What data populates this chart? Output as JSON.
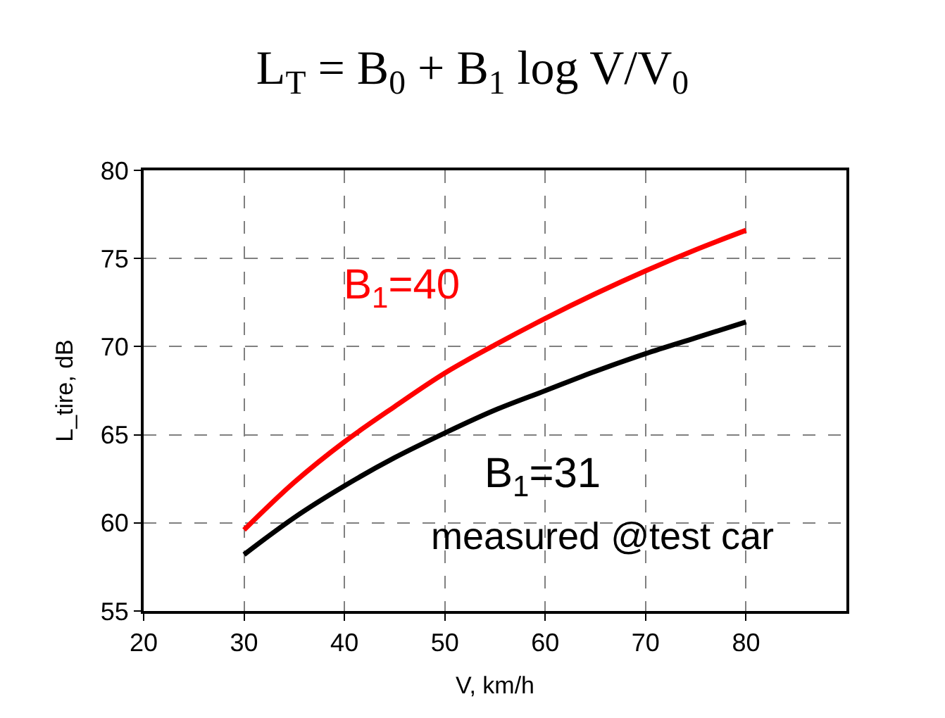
{
  "chart_data": {
    "type": "line",
    "title": "L$_{T}$ = B$_{0}$ + B$_{1}$ log V/V$_{0}$",
    "xlabel": "V, km/h",
    "ylabel": "L_tire, dB",
    "x": [
      30,
      35,
      40,
      45,
      50,
      55,
      60,
      65,
      70,
      75,
      80
    ],
    "series": [
      {
        "name": "B$_{1}$=40",
        "color": "#ff0000",
        "values": [
          59.6,
          62.3,
          64.6,
          66.6,
          68.5,
          70.1,
          71.6,
          73.0,
          74.3,
          75.5,
          76.6
        ]
      },
      {
        "name": "B$_{1}$=31",
        "color": "#000000",
        "values": [
          58.2,
          60.3,
          62.1,
          63.7,
          65.1,
          66.4,
          67.5,
          68.6,
          69.6,
          70.5,
          71.4
        ]
      }
    ],
    "annotations": [
      "measured @test car"
    ],
    "xlim": [
      20,
      90
    ],
    "xticks": [
      20,
      30,
      40,
      50,
      60,
      70,
      80
    ],
    "ylim": [
      55,
      80
    ],
    "yticks": [
      55,
      60,
      65,
      70,
      75,
      80
    ],
    "grid": true,
    "legend": false,
    "marker": "none",
    "line_style": "solid"
  }
}
